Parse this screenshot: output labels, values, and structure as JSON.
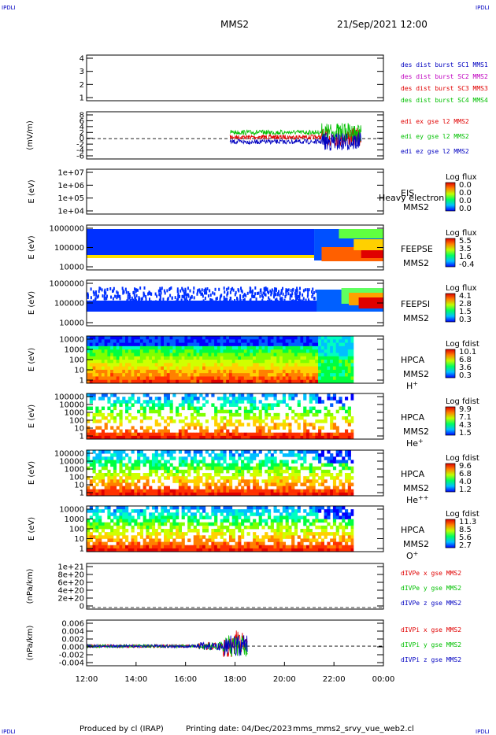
{
  "corner": "IPDLI",
  "header": {
    "spacecraft": "MMS2",
    "datetime": "21/Sep/2021 12:00"
  },
  "footer": {
    "produced": "Produced by cl (IRAP)",
    "printing": "Printing date: 04/Dec/2023",
    "script": "mms_mms2_srvy_vue_web2.cl"
  },
  "x_ticks": [
    "12:00",
    "14:00",
    "16:00",
    "18:00",
    "20:00",
    "22:00",
    "00:00"
  ],
  "colors": {
    "red": "#e00000",
    "green": "#00c000",
    "blue": "#0000c0",
    "magenta": "#c000c0"
  },
  "chart_data": [
    {
      "type": "line",
      "id": "sc",
      "yticks": [
        "1",
        "2",
        "3",
        "4"
      ],
      "legend": [
        {
          "name": "des dist burst SC1 MMS1",
          "color": "#0000c0"
        },
        {
          "name": "des dist burst SC2 MMS2",
          "color": "#c000c0"
        },
        {
          "name": "des dist burst SC3 MMS3",
          "color": "#e00000"
        },
        {
          "name": "des dist burst SC4 MMS4",
          "color": "#00c000"
        }
      ]
    },
    {
      "type": "line",
      "id": "edi",
      "ylabel": "(mV/m)",
      "yticks": [
        "-6",
        "-4",
        "-2",
        "0",
        "2",
        "4",
        "6",
        "8"
      ],
      "legend": [
        {
          "name": "edi ex gse l2 MMS2",
          "color": "#e00000"
        },
        {
          "name": "edi ey gse l2 MMS2",
          "color": "#00c000"
        },
        {
          "name": "edi ez gse l2 MMS2",
          "color": "#0000c0"
        }
      ]
    },
    {
      "type": "heatmap",
      "id": "eis",
      "ylabel": "E (eV)",
      "yticks": [
        "1e+04",
        "1e+05",
        "1e+06",
        "1e+07"
      ],
      "label1": "EIS",
      "label2": "MMS2",
      "overlay": "Heavy electron to",
      "cbar_title": "Log flux",
      "cbar_ticks": [
        "0.0",
        "0.0",
        "0.0",
        "0.0"
      ]
    },
    {
      "type": "heatmap",
      "id": "feepse",
      "ylabel": "E (eV)",
      "yticks": [
        "10000",
        "100000",
        "1000000"
      ],
      "label1": "FEEPSE",
      "label2": "MMS2",
      "cbar_title": "Log flux",
      "cbar_ticks": [
        "5.5",
        "3.5",
        "1.6",
        "-0.4"
      ]
    },
    {
      "type": "heatmap",
      "id": "feepsi",
      "ylabel": "E (eV)",
      "yticks": [
        "10000",
        "100000",
        "1000000"
      ],
      "label1": "FEEPSI",
      "label2": "MMS2",
      "cbar_title": "Log flux",
      "cbar_ticks": [
        "4.1",
        "2.8",
        "1.5",
        "0.3"
      ]
    },
    {
      "type": "heatmap",
      "id": "hpca_h",
      "ylabel": "E (eV)",
      "yticks": [
        "1",
        "10",
        "100",
        "1000",
        "10000"
      ],
      "label1": "HPCA",
      "label2": "MMS2",
      "species": "H",
      "sup": "+",
      "cbar_title": "Log fdist",
      "cbar_ticks": [
        "10.1",
        "6.8",
        "3.6",
        "0.3"
      ]
    },
    {
      "type": "heatmap",
      "id": "hpca_he",
      "ylabel": "E (eV)",
      "yticks": [
        "1",
        "10",
        "100",
        "1000",
        "10000",
        "100000"
      ],
      "label1": "HPCA",
      "label2": "MMS2",
      "species": "He",
      "sup": "+",
      "cbar_title": "Log fdist",
      "cbar_ticks": [
        "9.9",
        "7.1",
        "4.3",
        "1.5"
      ]
    },
    {
      "type": "heatmap",
      "id": "hpca_he2",
      "ylabel": "E (eV)",
      "yticks": [
        "1",
        "10",
        "100",
        "1000",
        "10000",
        "100000"
      ],
      "label1": "HPCA",
      "label2": "MMS2",
      "species": "He",
      "sup": "++",
      "cbar_title": "Log fdist",
      "cbar_ticks": [
        "9.6",
        "6.8",
        "4.0",
        "1.2"
      ]
    },
    {
      "type": "heatmap",
      "id": "hpca_o",
      "ylabel": "E (eV)",
      "yticks": [
        "1",
        "10",
        "100",
        "1000",
        "10000"
      ],
      "label1": "HPCA",
      "label2": "MMS2",
      "species": "O",
      "sup": "+",
      "cbar_title": "Log fdist",
      "cbar_ticks": [
        "11.3",
        "8.5",
        "5.6",
        "2.7"
      ]
    },
    {
      "type": "line",
      "id": "divpe",
      "ylabel": "(nPa/km)",
      "yticks": [
        "0",
        "2e+20",
        "4e+20",
        "6e+20",
        "8e+20",
        "1e+21"
      ],
      "legend": [
        {
          "name": "dIVPe x gse MMS2",
          "color": "#e00000"
        },
        {
          "name": "dIVPe y gse MMS2",
          "color": "#00c000"
        },
        {
          "name": "dIVPe z gse MMS2",
          "color": "#0000c0"
        }
      ]
    },
    {
      "type": "line",
      "id": "divpi",
      "ylabel": "(nPa/km)",
      "yticks": [
        "-0.004",
        "-0.002",
        "0.000",
        "0.002",
        "0.004",
        "0.006"
      ],
      "legend": [
        {
          "name": "dIVPi x gse MMS2",
          "color": "#e00000"
        },
        {
          "name": "dIVPi y gse MMS2",
          "color": "#00c000"
        },
        {
          "name": "dIVPi z gse MMS2",
          "color": "#0000c0"
        }
      ]
    }
  ]
}
